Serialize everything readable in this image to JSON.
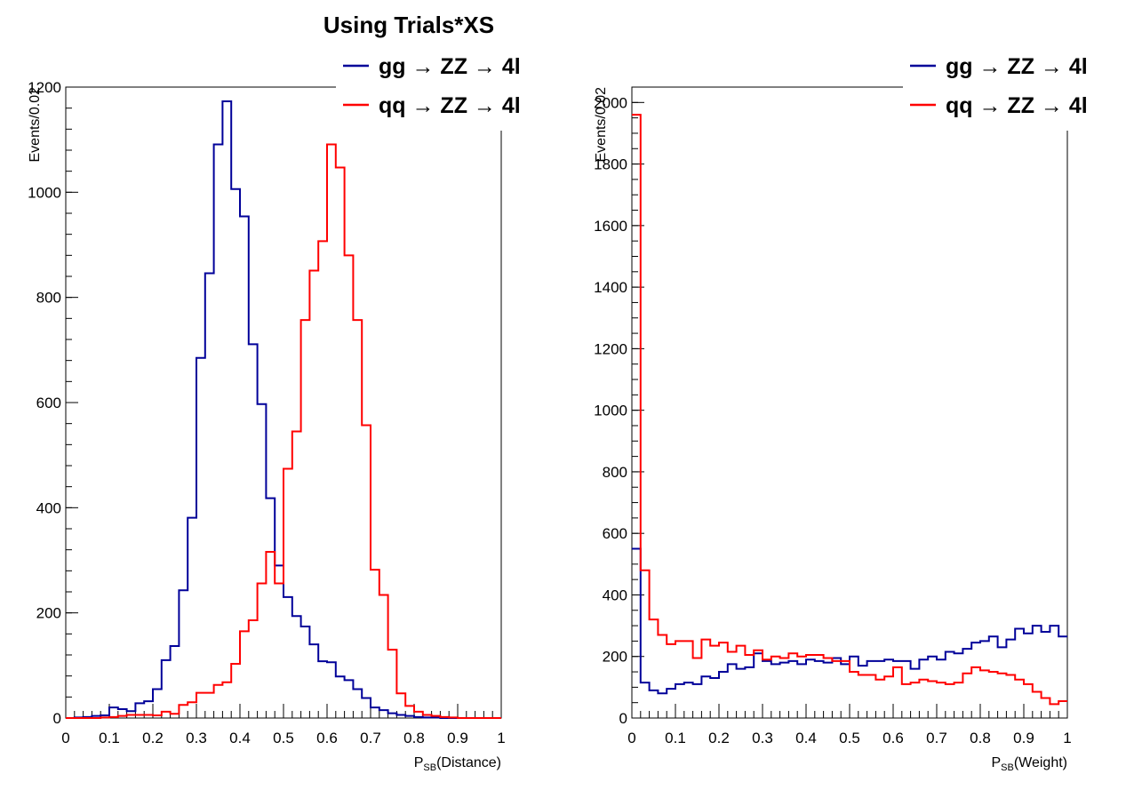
{
  "title": "Using Trials*XS",
  "colors": {
    "gg": "#000099",
    "qq": "#ff0000",
    "axis": "#000000"
  },
  "legend": {
    "gg_label": "gg → ZZ → 4l",
    "qq_label": "qq → ZZ → 4l"
  },
  "chart_data": [
    {
      "type": "line",
      "step": true,
      "xlabel_main": "P",
      "xlabel_sub": "SB",
      "xlabel_rest": "(Distance)",
      "ylabel": "Events/0.02",
      "xlim": [
        0,
        1
      ],
      "ylim": [
        0,
        1200
      ],
      "x_ticks": [
        "0",
        "0.1",
        "0.2",
        "0.3",
        "0.4",
        "0.5",
        "0.6",
        "0.7",
        "0.8",
        "0.9",
        "1"
      ],
      "y_ticks": [
        "0",
        "200",
        "400",
        "600",
        "800",
        "1000",
        "1200"
      ],
      "bin_width": 0.02,
      "series": [
        {
          "name": "gg → ZZ → 4l",
          "color": "#000099",
          "values": [
            0,
            1,
            2,
            4,
            5,
            20,
            17,
            13,
            28,
            32,
            55,
            110,
            137,
            243,
            381,
            685,
            846,
            1091,
            1173,
            1006,
            954,
            711,
            597,
            418,
            290,
            230,
            194,
            174,
            140,
            108,
            106,
            79,
            72,
            55,
            38,
            20,
            15,
            9,
            6,
            4,
            2,
            1,
            1,
            0,
            0,
            0,
            0,
            0,
            0,
            0
          ]
        },
        {
          "name": "qq → ZZ → 4l",
          "color": "#ff0000",
          "values": [
            0,
            0,
            0,
            0,
            1,
            2,
            4,
            6,
            6,
            6,
            5,
            12,
            8,
            25,
            30,
            48,
            48,
            63,
            68,
            103,
            165,
            186,
            256,
            316,
            256,
            474,
            545,
            757,
            851,
            907,
            1091,
            1047,
            880,
            757,
            557,
            282,
            234,
            130,
            47,
            23,
            12,
            6,
            4,
            2,
            1,
            0,
            0,
            0,
            0,
            0
          ]
        }
      ]
    },
    {
      "type": "line",
      "step": true,
      "xlabel_main": "P",
      "xlabel_sub": "SB",
      "xlabel_rest": "(Weight)",
      "ylabel": "Events/0.02",
      "xlim": [
        0,
        1
      ],
      "ylim": [
        0,
        2050
      ],
      "x_ticks": [
        "0",
        "0.1",
        "0.2",
        "0.3",
        "0.4",
        "0.5",
        "0.6",
        "0.7",
        "0.8",
        "0.9",
        "1"
      ],
      "y_ticks": [
        "0",
        "200",
        "400",
        "600",
        "800",
        "1000",
        "1200",
        "1400",
        "1600",
        "1800",
        "2000"
      ],
      "bin_width": 0.02,
      "series": [
        {
          "name": "gg → ZZ → 4l",
          "color": "#000099",
          "values": [
            550,
            115,
            90,
            80,
            95,
            110,
            115,
            110,
            135,
            130,
            150,
            175,
            160,
            165,
            210,
            185,
            175,
            180,
            185,
            175,
            190,
            185,
            180,
            195,
            175,
            200,
            170,
            185,
            185,
            190,
            185,
            185,
            160,
            190,
            200,
            190,
            215,
            210,
            225,
            245,
            250,
            265,
            230,
            255,
            290,
            275,
            300,
            280,
            300,
            265
          ]
        },
        {
          "name": "qq → ZZ → 4l",
          "color": "#ff0000",
          "values": [
            1960,
            480,
            320,
            270,
            240,
            250,
            250,
            195,
            255,
            235,
            245,
            215,
            235,
            205,
            220,
            190,
            200,
            195,
            210,
            200,
            205,
            205,
            195,
            185,
            185,
            150,
            140,
            140,
            125,
            135,
            165,
            110,
            115,
            125,
            120,
            115,
            110,
            115,
            145,
            165,
            155,
            150,
            145,
            140,
            125,
            110,
            85,
            65,
            45,
            55
          ]
        }
      ]
    }
  ]
}
